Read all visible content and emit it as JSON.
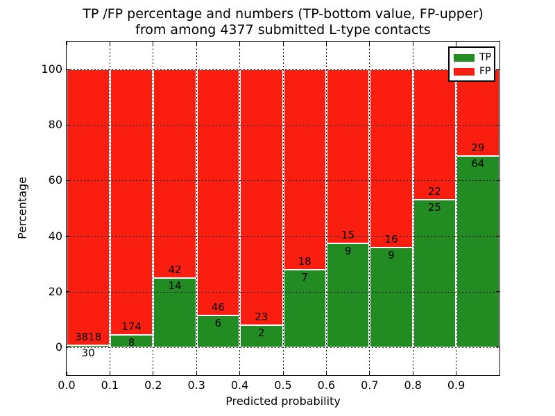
{
  "title": {
    "line1": "TP /FP percentage and numbers (TP-bottom value, FP-upper)",
    "line2": "from among 4377 submitted L-type contacts"
  },
  "x_axis": {
    "label": "Predicted probability",
    "tick_labels": [
      "0.0",
      "0.1",
      "0.2",
      "0.3",
      "0.4",
      "0.5",
      "0.6",
      "0.7",
      "0.8",
      "0.9"
    ],
    "tick_values": [
      0.0,
      0.1,
      0.2,
      0.3,
      0.4,
      0.5,
      0.6,
      0.7,
      0.8,
      0.9
    ]
  },
  "y_axis": {
    "label": "Percentage",
    "tick_labels": [
      "0",
      "20",
      "40",
      "60",
      "80",
      "100"
    ],
    "tick_values": [
      0,
      20,
      40,
      60,
      80,
      100
    ]
  },
  "legend": {
    "items": [
      {
        "label": "TP",
        "color": "#228b22"
      },
      {
        "label": "FP",
        "color": "#f91e10"
      }
    ]
  },
  "colors": {
    "tp_green": "#228b22",
    "fp_red": "#f91e10",
    "grid": "#000000",
    "background": "#ffffff"
  },
  "chart_data": {
    "type": "bar",
    "stacked": true,
    "normalized": "each bar totals 100%",
    "title": "TP /FP percentage and numbers (TP-bottom value, FP-upper) from among 4377 submitted L-type contacts",
    "xlabel": "Predicted probability",
    "ylabel": "Percentage",
    "xlim": [
      0.0,
      1.0
    ],
    "ylim": [
      -10,
      110
    ],
    "bin_edges": [
      0.0,
      0.1,
      0.2,
      0.3,
      0.4,
      0.5,
      0.6,
      0.7,
      0.8,
      0.9,
      1.0
    ],
    "series": [
      {
        "name": "TP",
        "color": "#228b22",
        "counts": [
          30,
          8,
          14,
          6,
          2,
          7,
          9,
          9,
          25,
          64
        ],
        "percent": [
          0.78,
          4.4,
          25.0,
          11.54,
          8.0,
          28.0,
          37.5,
          36.0,
          53.19,
          68.82
        ]
      },
      {
        "name": "FP",
        "color": "#f91e10",
        "counts": [
          3818,
          174,
          42,
          46,
          23,
          18,
          15,
          16,
          22,
          29
        ],
        "percent": [
          99.22,
          95.6,
          75.0,
          88.46,
          92.0,
          72.0,
          62.5,
          64.0,
          46.81,
          31.18
        ]
      }
    ],
    "total_contacts": 4377,
    "annotation_note": "FP count printed just above TP/FP boundary, TP count printed just below boundary",
    "grid": "dotted black lines at every x and y tick",
    "legend_position": "upper right"
  }
}
